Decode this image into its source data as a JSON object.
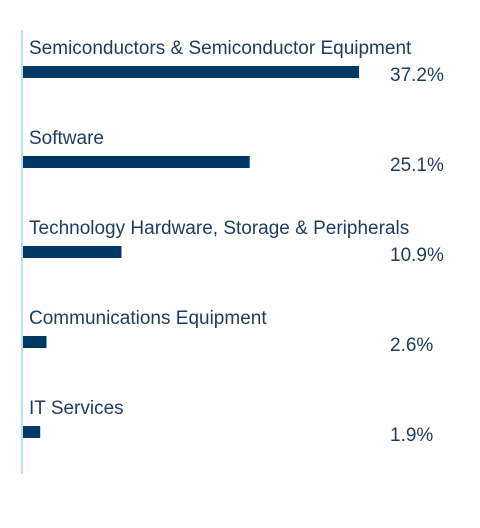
{
  "chart_data": {
    "type": "bar",
    "orientation": "horizontal",
    "categories": [
      "Semiconductors & Semiconductor Equipment",
      "Software",
      "Technology Hardware, Storage & Peripherals",
      "Communications Equipment",
      "IT Services"
    ],
    "values": [
      37.2,
      25.1,
      10.9,
      2.6,
      1.9
    ],
    "value_labels": [
      "37.2%",
      "25.1%",
      "10.9%",
      "2.6%",
      "1.9%"
    ],
    "title": "",
    "xlabel": "",
    "ylabel": "",
    "xlim": [
      0,
      37.2
    ],
    "grid": false,
    "legend": "none"
  },
  "colors": {
    "bar": "#003865",
    "axis": "#a9d8e0",
    "text": "#1f3a5f"
  }
}
